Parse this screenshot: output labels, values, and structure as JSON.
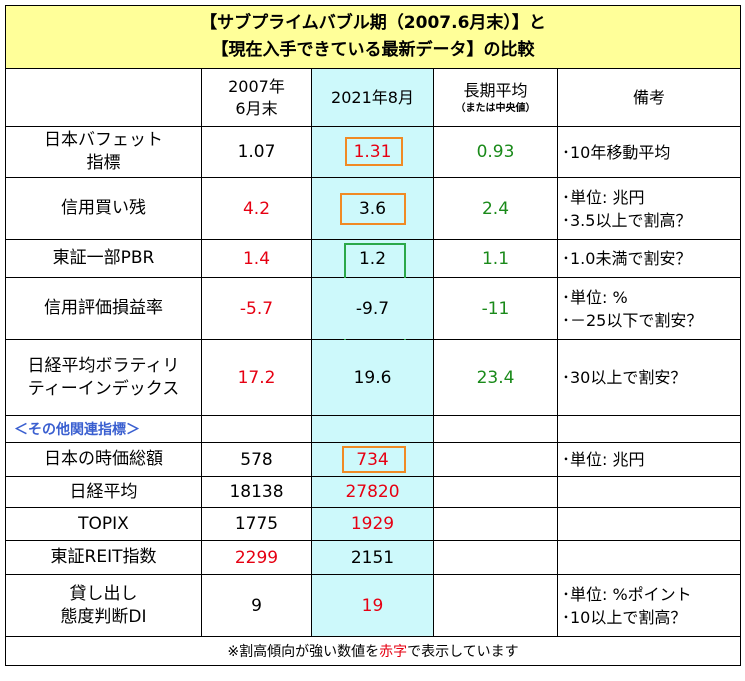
{
  "title": {
    "line1": "【サブプライムバブル期（2007.6月末）】と",
    "line2": "【現在入手できている最新データ】の比較"
  },
  "header": {
    "col2007_line1": "2007年",
    "col2007_line2": "6月末",
    "col2021": "2021年8月",
    "col_long_line1": "長期平均",
    "col_long_line2": "（または中央値）",
    "col_note": "備考"
  },
  "rows": [
    {
      "label_lines": [
        "日本バフェット",
        "指標"
      ],
      "v2007": "1.07",
      "v2021": "1.31",
      "vlong": "0.93",
      "note_lines": [
        "･10年移動平均"
      ]
    },
    {
      "label_lines": [
        "信用買い残"
      ],
      "v2007": "4.2",
      "v2021": "3.6",
      "vlong": "2.4",
      "note_lines": [
        "･単位: 兆円",
        "･3.5以上で割高？"
      ]
    },
    {
      "label_lines": [
        "東証一部PBR"
      ],
      "v2007": "1.4",
      "v2021": "1.2",
      "vlong": "1.1",
      "note_lines": [
        "･1.0未満で割安？"
      ]
    },
    {
      "label_lines": [
        "信用評価損益率"
      ],
      "v2007": "-5.7",
      "v2021": "-9.7",
      "vlong": "-11",
      "note_lines": [
        "･単位: %",
        "･－25以下で割安？"
      ]
    },
    {
      "label_lines": [
        "日経平均ボラティリ",
        "ティーインデックス"
      ],
      "v2007": "17.2",
      "v2021": "19.6",
      "vlong": "23.4",
      "note_lines": [
        "･30以上で割安？"
      ]
    }
  ],
  "section_label": "＜その他関連指標＞",
  "rows2": [
    {
      "label_lines": [
        "日本の時価総額"
      ],
      "v2007": "578",
      "v2021": "734",
      "vlong": "",
      "note_lines": [
        "･単位: 兆円"
      ]
    },
    {
      "label_lines": [
        "日経平均"
      ],
      "v2007": "18138",
      "v2021": "27820",
      "vlong": "",
      "note_lines": [
        ""
      ]
    },
    {
      "label_lines": [
        "TOPIX"
      ],
      "v2007": "1775",
      "v2021": "1929",
      "vlong": "",
      "note_lines": [
        ""
      ]
    },
    {
      "label_lines": [
        "東証REIT指数"
      ],
      "v2007": "2299",
      "v2021": "2151",
      "vlong": "",
      "note_lines": [
        ""
      ]
    },
    {
      "label_lines": [
        "貸し出し",
        "態度判断DI"
      ],
      "v2007": "9",
      "v2021": "19",
      "vlong": "",
      "note_lines": [
        "･単位: %ポイント",
        "･10以上で割高？"
      ]
    }
  ],
  "footer": {
    "before": "※割高傾向が強い数値を",
    "red": "赤字",
    "after": "で表示しています"
  },
  "colors": {
    "title_bg": "#ffff99",
    "current_col_bg": "#cdf9fb",
    "red": "#e60012",
    "green": "#1a8a1a",
    "orange_box": "#f08a24",
    "green_box": "#2aa84a",
    "section_blue": "#3a5fd0"
  }
}
